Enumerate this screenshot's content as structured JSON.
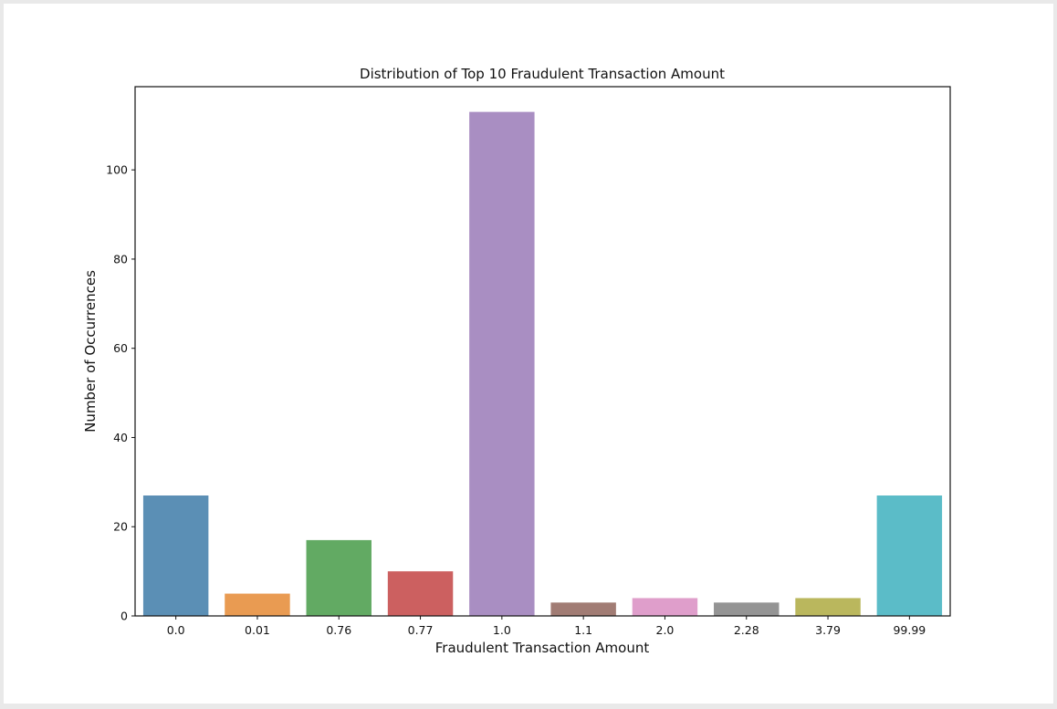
{
  "chart_data": {
    "type": "bar",
    "title": "Distribution of Top 10 Fraudulent Transaction Amount",
    "xlabel": "Fraudulent Transaction Amount",
    "ylabel": "Number of Occurrences",
    "categories": [
      "0.0",
      "0.01",
      "0.76",
      "0.77",
      "1.0",
      "1.1",
      "2.0",
      "2.28",
      "3.79",
      "99.99"
    ],
    "values": [
      27,
      5,
      17,
      10,
      113,
      3,
      4,
      3,
      4,
      27
    ],
    "colors": [
      "#5b8fb5",
      "#e99b52",
      "#62aa63",
      "#cc6060",
      "#a98ec2",
      "#a17c74",
      "#df9ecb",
      "#949494",
      "#bab75d",
      "#5bbcc8"
    ],
    "ylim": [
      0,
      118.65
    ],
    "yticks": [
      0,
      20,
      40,
      60,
      80,
      100
    ],
    "grid": false,
    "legend": "none"
  }
}
